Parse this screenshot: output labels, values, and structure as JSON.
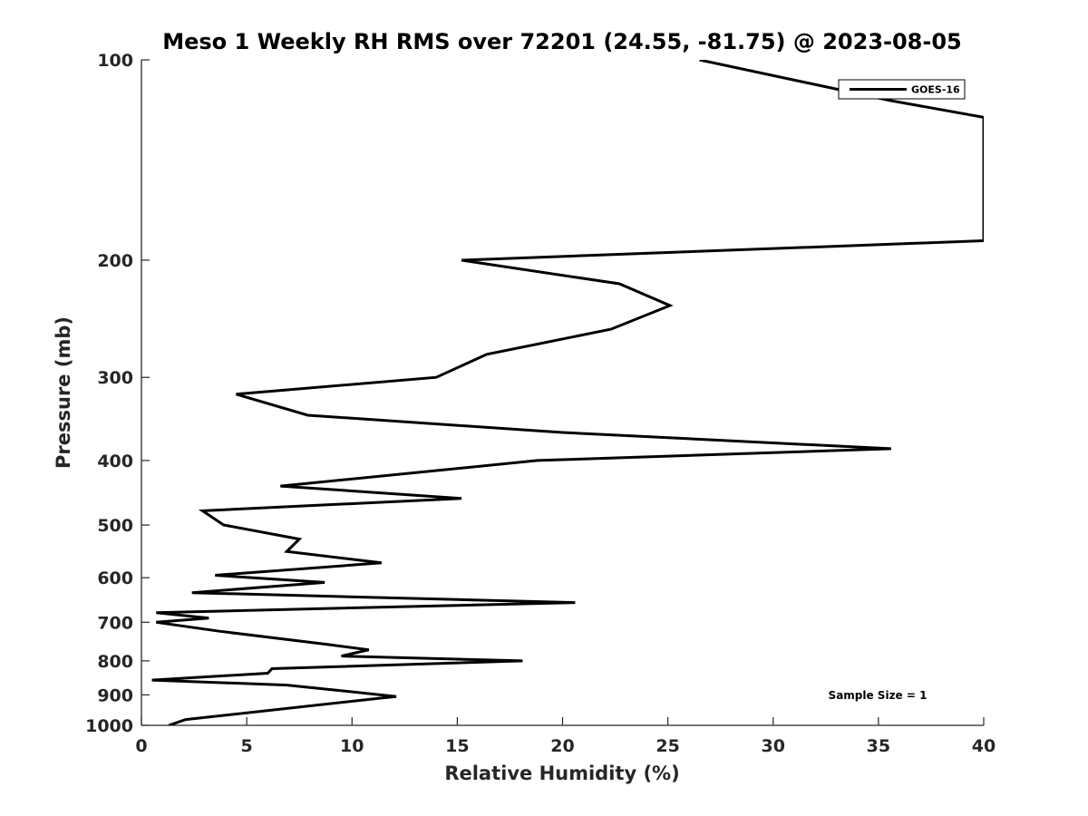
{
  "chart_data": {
    "type": "line",
    "title": "Meso 1 Weekly RH RMS over 72201 (24.55, -81.75) @ 2023-08-05",
    "xlabel": "Relative Humidity (%)",
    "ylabel": "Pressure (mb)",
    "xlim": [
      0,
      40
    ],
    "ylim": [
      100,
      1000
    ],
    "y_scale": "log",
    "y_reversed": true,
    "grid": false,
    "x_ticks": [
      0,
      5,
      10,
      15,
      20,
      25,
      30,
      35,
      40
    ],
    "y_ticks": [
      100,
      200,
      300,
      400,
      500,
      600,
      700,
      800,
      900,
      1000
    ],
    "legend_position": "top-right",
    "series": [
      {
        "name": "GOES-16",
        "color": "#000000",
        "points": [
          [
            26.5,
            100
          ],
          [
            35.5,
            115
          ],
          [
            40.0,
            122
          ],
          [
            40.0,
            187
          ],
          [
            15.2,
            200
          ],
          [
            22.7,
            217
          ],
          [
            25.1,
            234
          ],
          [
            22.3,
            254
          ],
          [
            16.4,
            277
          ],
          [
            14.0,
            300
          ],
          [
            4.5,
            318
          ],
          [
            7.9,
            342
          ],
          [
            20.0,
            363
          ],
          [
            35.6,
            384
          ],
          [
            18.8,
            400
          ],
          [
            6.6,
            437
          ],
          [
            15.2,
            456
          ],
          [
            2.9,
            476
          ],
          [
            3.9,
            500
          ],
          [
            7.5,
            525
          ],
          [
            6.9,
            548
          ],
          [
            11.4,
            570
          ],
          [
            3.5,
            595
          ],
          [
            8.7,
            610
          ],
          [
            2.4,
            632
          ],
          [
            20.6,
            654
          ],
          [
            0.7,
            677
          ],
          [
            3.2,
            690
          ],
          [
            0.7,
            700
          ],
          [
            3.7,
            722
          ],
          [
            8.7,
            755
          ],
          [
            10.8,
            770
          ],
          [
            9.5,
            787
          ],
          [
            18.1,
            800
          ],
          [
            6.2,
            822
          ],
          [
            6.0,
            835
          ],
          [
            0.5,
            855
          ],
          [
            6.9,
            870
          ],
          [
            9.2,
            885
          ],
          [
            12.1,
            905
          ],
          [
            11.4,
            910
          ],
          [
            2.1,
            980
          ],
          [
            1.3,
            1000
          ]
        ]
      }
    ],
    "annotation": "Sample Size = 1"
  }
}
